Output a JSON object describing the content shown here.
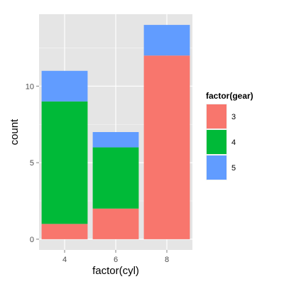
{
  "chart_data": {
    "type": "bar",
    "stacked": true,
    "categories": [
      "4",
      "6",
      "8"
    ],
    "series": [
      {
        "name": "3",
        "color": "#F8766D",
        "values": [
          1,
          2,
          12
        ]
      },
      {
        "name": "4",
        "color": "#00BA38",
        "values": [
          8,
          4,
          0
        ]
      },
      {
        "name": "5",
        "color": "#619CFF",
        "values": [
          2,
          1,
          2
        ]
      }
    ],
    "xlabel": "factor(cyl)",
    "ylabel": "count",
    "ylim": [
      -0.7,
      14.7
    ],
    "yticks": [
      0,
      5,
      10
    ],
    "y_minor_ticks": [
      2.5,
      7.5,
      12.5
    ],
    "grid": true,
    "legend": {
      "title": "factor(gear)",
      "position": "right"
    },
    "colors": {
      "panel_background": "#E5E5E5",
      "grid_major": "#FFFFFF",
      "grid_minor": "#F2F2F2",
      "tick_text": "#4D4D4D"
    }
  }
}
